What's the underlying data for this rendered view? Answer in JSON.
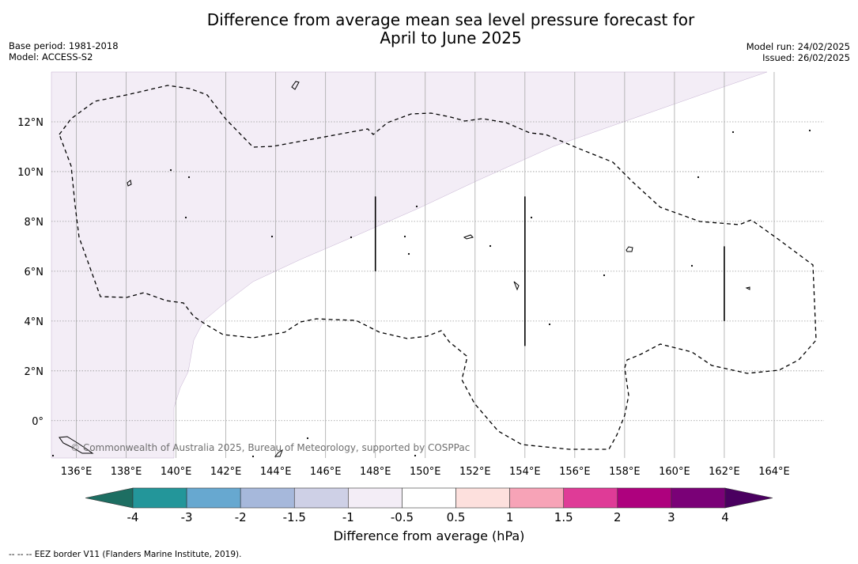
{
  "title_line1": "Difference from average mean sea level pressure forecast for",
  "title_line2": "April to June 2025",
  "meta_left": {
    "base_period": "Base period: 1981-2018",
    "model": "Model: ACCESS-S2"
  },
  "meta_right": {
    "model_run": "Model run: 24/02/2025",
    "issued": "Issued: 26/02/2025"
  },
  "copyright": "© Commonwealth of Australia 2025, Bureau of Meteorology, supported by COSPPac",
  "x_ticks": [
    "136°E",
    "138°E",
    "140°E",
    "142°E",
    "144°E",
    "146°E",
    "148°E",
    "150°E",
    "152°E",
    "154°E",
    "156°E",
    "158°E",
    "160°E",
    "162°E",
    "164°E"
  ],
  "x_tick_values": [
    136,
    138,
    140,
    142,
    144,
    146,
    148,
    150,
    152,
    154,
    156,
    158,
    160,
    162,
    164
  ],
  "y_ticks": [
    "12°N",
    "10°N",
    "8°N",
    "6°N",
    "4°N",
    "2°N",
    "0°"
  ],
  "y_tick_values": [
    12,
    10,
    8,
    6,
    4,
    2,
    0
  ],
  "lon_range": [
    135,
    166
  ],
  "lat_range": [
    -1.5,
    14
  ],
  "shaded_category": "-0.5 to -1 hPa",
  "colorbar": {
    "title": "Difference from average (hPa)",
    "labels": [
      "-4",
      "-3",
      "-2",
      "-1.5",
      "-1",
      "-0.5",
      "0.5",
      "1",
      "1.5",
      "2",
      "3",
      "4"
    ],
    "colors": [
      "#1d6e62",
      "#23969a",
      "#67a8d0",
      "#a6b8db",
      "#ced0e6",
      "#f3edf6",
      "#ffffff",
      "#fde0dd",
      "#f7a3b7",
      "#df3b97",
      "#ae017e",
      "#7a0177",
      "#4a0060"
    ]
  },
  "footnote": "--  --  -- EEZ border V11 (Flanders Marine Institute, 2019)."
}
